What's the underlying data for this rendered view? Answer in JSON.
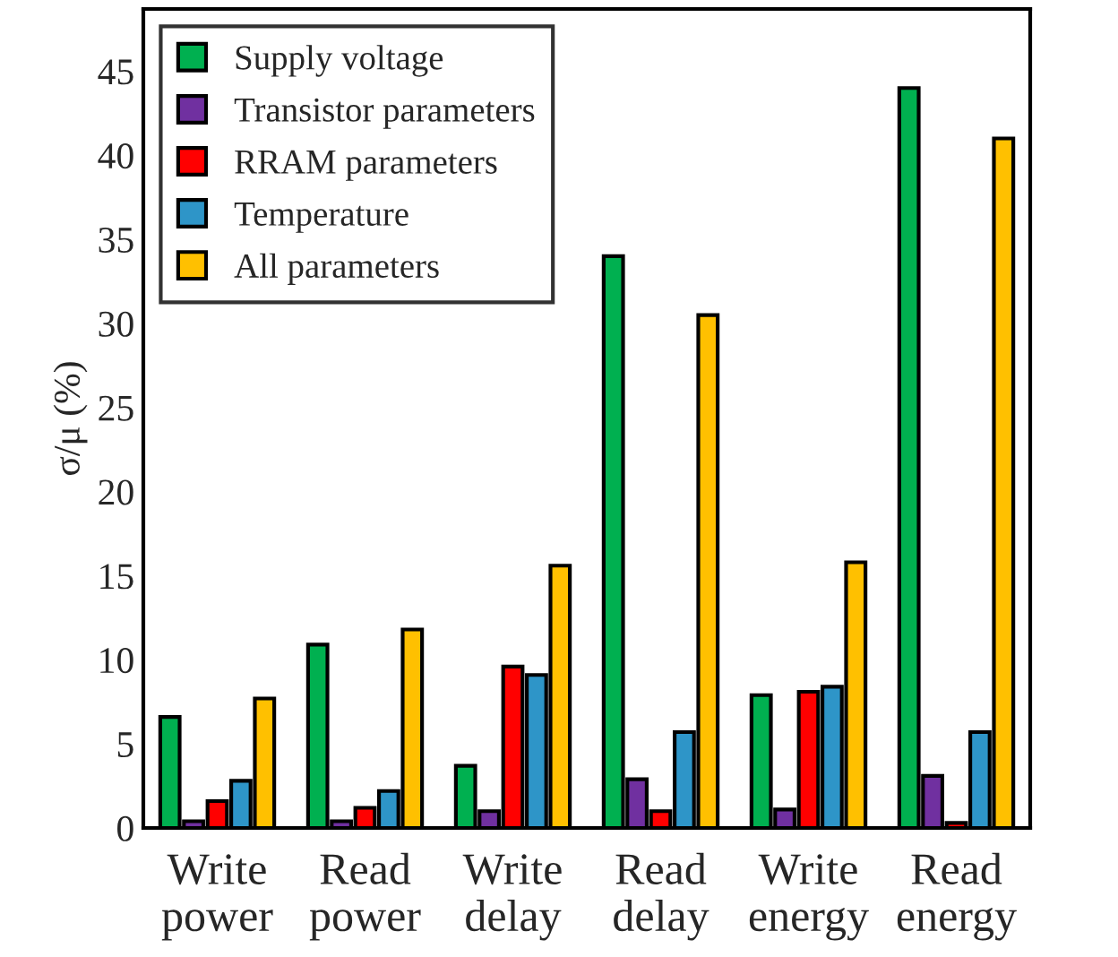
{
  "chart_data": {
    "type": "bar",
    "ylabel": "σ/μ (%)",
    "categories": [
      "Write\npower",
      "Read\npower",
      "Write\ndelay",
      "Read\ndelay",
      "Write\nenergy",
      "Read\nenergy"
    ],
    "series": [
      {
        "name": "Supply voltage",
        "color": "#00b050",
        "values": [
          6.6,
          10.9,
          3.7,
          34,
          7.9,
          44
        ]
      },
      {
        "name": "Transistor parameters",
        "color": "#7030a0",
        "values": [
          0.4,
          0.4,
          1.0,
          2.9,
          1.1,
          3.1
        ]
      },
      {
        "name": "RRAM parameters",
        "color": "#ff0000",
        "values": [
          1.6,
          1.2,
          9.6,
          1.0,
          8.1,
          0.3
        ]
      },
      {
        "name": "Temperature",
        "color": "#2e95c8",
        "values": [
          2.8,
          2.2,
          9.1,
          5.7,
          8.4,
          5.7
        ]
      },
      {
        "name": "All parameters",
        "color": "#ffc000",
        "values": [
          7.7,
          11.8,
          15.6,
          30.5,
          15.8,
          41
        ]
      }
    ],
    "ylim": [
      0,
      48.7
    ],
    "yticks": [
      0,
      5,
      10,
      15,
      20,
      25,
      30,
      35,
      40,
      45
    ],
    "grid": false,
    "legend": "top left"
  }
}
